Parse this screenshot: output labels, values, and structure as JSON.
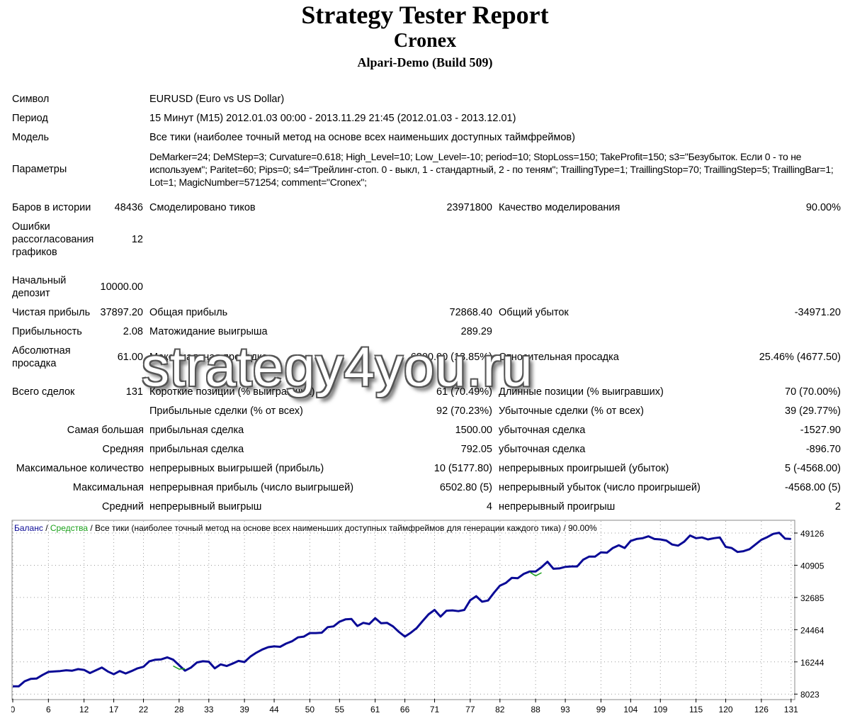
{
  "header": {
    "title": "Strategy Tester Report",
    "expert": "Cronex",
    "server": "Alpari-Demo (Build 509)"
  },
  "info": {
    "symbol_label": "Символ",
    "symbol_value": "EURUSD (Euro vs US Dollar)",
    "period_label": "Период",
    "period_value": "15 Минут (M15) 2012.01.03 00:00 - 2013.11.29 21:45 (2012.01.03 - 2013.12.01)",
    "model_label": "Модель",
    "model_value": "Все тики (наиболее точный метод на основе всех наименьших доступных таймфреймов)",
    "params_label": "Параметры",
    "params_value": "DeMarker=24; DeMStep=3; Curvature=0.618; High_Level=10; Low_Level=-10; period=10; StopLoss=150; TakeProfit=150; s3=\"Безубыток. Если 0 - то не используем\"; Paritet=60; Pips=0; s4=\"Трейлинг-стоп. 0 - выкл, 1 - стандартный, 2 - по теням\"; TraillingType=1; TraillingStop=70; TraillingStep=5; TraillingBar=1; Lot=1; MagicNumber=571254; comment=\"Cronex\";"
  },
  "stats": {
    "bars_label": "Баров в истории",
    "bars_value": "48436",
    "ticks_label": "Смоделировано тиков",
    "ticks_value": "23971800",
    "quality_label": "Качество моделирования",
    "quality_value": "90.00%",
    "errors_label": "Ошибки рассогласования графиков",
    "errors_value": "12",
    "deposit_label": "Начальный депозит",
    "deposit_value": "10000.00",
    "net_label": "Чистая прибыль",
    "net_value": "37897.20",
    "gross_profit_label": "Общая прибыль",
    "gross_profit_value": "72868.40",
    "gross_loss_label": "Общий убыток",
    "gross_loss_value": "-34971.20",
    "pf_label": "Прибыльность",
    "pf_value": "2.08",
    "payoff_label": "Матожидание выигрыша",
    "payoff_value": "289.29",
    "abs_dd_label": "Абсолютная просадка",
    "abs_dd_value": "61.00",
    "max_dd_label": "Максимальная просадка",
    "max_dd_value": "6800.00 (13.85%)",
    "rel_dd_label": "Относительная просадка",
    "rel_dd_value": "25.46% (4677.50)",
    "trades_label": "Всего сделок",
    "trades_value": "131",
    "short_label": "Короткие позиции (% выигравших)",
    "short_value": "61 (70.49%)",
    "long_label": "Длинные позиции (% выигравших)",
    "long_value": "70 (70.00%)",
    "profit_trades_label": "Прибыльные сделки (% от всех)",
    "profit_trades_value": "92 (70.23%)",
    "loss_trades_label": "Убыточные сделки (% от всех)",
    "loss_trades_value": "39 (29.77%)",
    "largest_label": "Самая большая",
    "largest_profit_label": "прибыльная сделка",
    "largest_profit_value": "1500.00",
    "largest_loss_label": "убыточная сделка",
    "largest_loss_value": "-1527.90",
    "average_label": "Средняя",
    "average_profit_label": "прибыльная сделка",
    "average_profit_value": "792.05",
    "average_loss_label": "убыточная сделка",
    "average_loss_value": "-896.70",
    "max_count_label": "Максимальное количество",
    "max_cons_wins_label": "непрерывных выигрышей (прибыль)",
    "max_cons_wins_value": "10 (5177.80)",
    "max_cons_losses_label": "непрерывных проигрышей (убыток)",
    "max_cons_losses_value": "5 (-4568.00)",
    "maximal_label": "Максимальная",
    "max_cons_profit_label": "непрерывная прибыль (число выигрышей)",
    "max_cons_profit_value": "6502.80 (5)",
    "max_cons_loss_label": "непрерывный убыток (число проигрышей)",
    "max_cons_loss_value": "-4568.00 (5)",
    "avg_label": "Средний",
    "avg_wins_label": "непрерывный выигрыш",
    "avg_wins_value": "4",
    "avg_losses_label": "непрерывный проигрыш",
    "avg_losses_value": "2"
  },
  "watermark": "strategy4you.ru",
  "chart_data": {
    "type": "line",
    "legend": {
      "balance": "Баланс",
      "sep1": " / ",
      "equity": "Средства",
      "rest": " / Все тики (наиболее точный метод на основе всех наименьших доступных таймфреймов для генерации каждого тика) / 90.00%"
    },
    "colors": {
      "balance": "#0a0a96",
      "equity": "#1aa01a",
      "grid": "#9a9a9a",
      "text": "#000000"
    },
    "x_ticks": [
      0,
      6,
      12,
      17,
      22,
      28,
      33,
      39,
      44,
      50,
      55,
      61,
      66,
      71,
      77,
      82,
      88,
      93,
      99,
      104,
      109,
      115,
      120,
      126,
      131
    ],
    "y_ticks": [
      8023,
      16244,
      24464,
      32685,
      40905,
      49126
    ],
    "xlim": [
      0,
      131.5
    ],
    "ylim": [
      6800,
      52200
    ],
    "grid": true,
    "series": [
      {
        "name": "Баланс",
        "x": [
          0,
          1,
          2,
          3,
          4,
          5,
          6,
          7,
          8,
          9,
          10,
          11,
          12,
          13,
          14,
          15,
          16,
          17,
          18,
          19,
          20,
          21,
          22,
          23,
          24,
          25,
          26,
          27,
          28,
          29,
          30,
          31,
          32,
          33,
          34,
          35,
          36,
          37,
          38,
          39,
          40,
          41,
          42,
          43,
          44,
          45,
          46,
          47,
          48,
          49,
          50,
          51,
          52,
          53,
          54,
          55,
          56,
          57,
          58,
          59,
          60,
          61,
          62,
          63,
          64,
          65,
          66,
          67,
          68,
          69,
          70,
          71,
          72,
          73,
          74,
          75,
          76,
          77,
          78,
          79,
          80,
          81,
          82,
          83,
          84,
          85,
          86,
          87,
          88,
          89,
          90,
          91,
          92,
          93,
          94,
          95,
          96,
          97,
          98,
          99,
          100,
          101,
          102,
          103,
          104,
          105,
          106,
          107,
          108,
          109,
          110,
          111,
          112,
          113,
          114,
          115,
          116,
          117,
          118,
          119,
          120,
          121,
          122,
          123,
          124,
          125,
          126,
          127,
          128,
          129,
          130,
          131
        ],
        "values": [
          10000,
          10000,
          11300,
          11900,
          12000,
          12900,
          13700,
          13800,
          13900,
          14100,
          14000,
          14400,
          14200,
          13400,
          14100,
          14800,
          13800,
          13100,
          13900,
          13300,
          13900,
          14600,
          15000,
          16400,
          16800,
          16900,
          17400,
          16800,
          15400,
          14000,
          14800,
          16100,
          16400,
          16300,
          14600,
          15600,
          15200,
          15800,
          16500,
          16200,
          17600,
          18600,
          19400,
          20000,
          20200,
          20100,
          20900,
          21500,
          22500,
          22700,
          23600,
          23600,
          23700,
          25100,
          25300,
          26500,
          27100,
          27200,
          25400,
          26200,
          25900,
          27400,
          26100,
          26200,
          25300,
          23900,
          22700,
          23700,
          24900,
          26700,
          28400,
          29500,
          27800,
          29300,
          29400,
          29200,
          29500,
          32000,
          33000,
          31600,
          31900,
          33900,
          35700,
          36400,
          37700,
          37600,
          38700,
          39300,
          39300,
          40400,
          41800,
          40000,
          40100,
          40500,
          40600,
          40600,
          42300,
          43100,
          43100,
          44200,
          44100,
          45300,
          46000,
          45300,
          47100,
          47600,
          47800,
          48300,
          47600,
          47500,
          47200,
          46200,
          45900,
          46900,
          48500,
          47800,
          48000,
          47500,
          47800,
          48000,
          45600,
          45300,
          44300,
          44500,
          45000,
          46200,
          47400,
          48100,
          48900,
          49200,
          47700,
          47600
        ]
      },
      {
        "name": "Средства",
        "x": [
          0,
          27,
          28,
          29,
          87,
          88,
          89
        ],
        "values": [
          10000,
          15200,
          14400,
          14500,
          39200,
          38200,
          39000
        ]
      }
    ]
  }
}
